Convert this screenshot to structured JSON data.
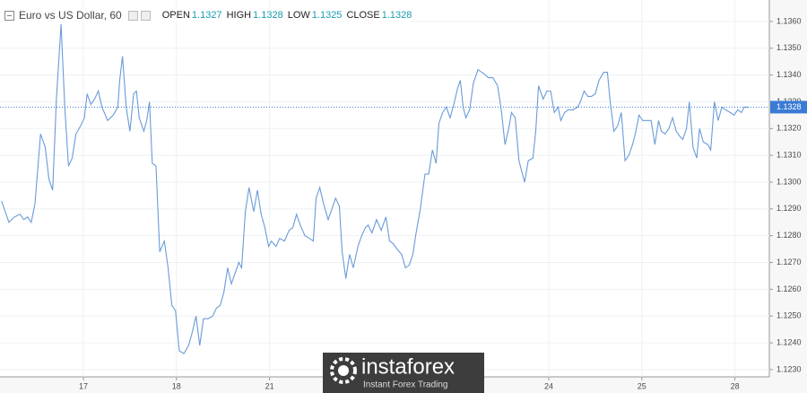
{
  "chart_data": {
    "type": "line",
    "title": "Euro vs US Dollar, 60",
    "ohlc": [
      {
        "label": "OPEN",
        "value": 1.1327
      },
      {
        "label": "HIGH",
        "value": 1.1328
      },
      {
        "label": "LOW",
        "value": 1.1325
      },
      {
        "label": "CLOSE",
        "value": 1.1328
      }
    ],
    "last_price": 1.1328,
    "color": "#6a9bd8",
    "last_price_color": "#3a7bd5",
    "grid": true,
    "xlim": [
      -0.896,
      7.37
    ],
    "ylim": [
      1.12273,
      1.1368
    ],
    "xticks": [
      {
        "value": 0,
        "label": "17"
      },
      {
        "value": 1,
        "label": "18"
      },
      {
        "value": 2,
        "label": "21"
      },
      {
        "value": 5,
        "label": "24"
      },
      {
        "value": 6,
        "label": "25"
      },
      {
        "value": 7,
        "label": "28"
      }
    ],
    "yticks": [
      {
        "value": 1.123,
        "label": "1.1230"
      },
      {
        "value": 1.124,
        "label": "1.1240"
      },
      {
        "value": 1.125,
        "label": "1.1250"
      },
      {
        "value": 1.126,
        "label": "1.1260"
      },
      {
        "value": 1.127,
        "label": "1.1270"
      },
      {
        "value": 1.128,
        "label": "1.1280"
      },
      {
        "value": 1.129,
        "label": "1.1290"
      },
      {
        "value": 1.13,
        "label": "1.1300"
      },
      {
        "value": 1.131,
        "label": "1.1310"
      },
      {
        "value": 1.132,
        "label": "1.1320"
      },
      {
        "value": 1.133,
        "label": "1.1330"
      },
      {
        "value": 1.134,
        "label": "1.1340"
      },
      {
        "value": 1.135,
        "label": "1.1350"
      },
      {
        "value": 1.136,
        "label": "1.1360"
      }
    ],
    "x": [
      -0.88,
      -0.8,
      -0.74,
      -0.68,
      -0.64,
      -0.6,
      -0.56,
      -0.52,
      -0.46,
      -0.41,
      -0.37,
      -0.33,
      -0.29,
      -0.24,
      -0.2,
      -0.16,
      -0.12,
      -0.08,
      -0.03,
      0.01,
      0.04,
      0.08,
      0.12,
      0.16,
      0.2,
      0.26,
      0.32,
      0.37,
      0.39,
      0.42,
      0.46,
      0.5,
      0.54,
      0.57,
      0.6,
      0.65,
      0.68,
      0.71,
      0.74,
      0.78,
      0.82,
      0.87,
      0.91,
      0.95,
      0.99,
      1.03,
      1.08,
      1.13,
      1.17,
      1.21,
      1.25,
      1.29,
      1.34,
      1.39,
      1.43,
      1.47,
      1.51,
      1.55,
      1.59,
      1.63,
      1.67,
      1.7,
      1.74,
      1.78,
      1.83,
      1.87,
      1.91,
      1.95,
      1.99,
      2.02,
      2.07,
      2.11,
      2.16,
      2.21,
      2.25,
      2.29,
      2.33,
      2.38,
      2.43,
      2.47,
      2.5,
      2.54,
      2.58,
      2.63,
      2.67,
      2.71,
      2.75,
      2.78,
      2.82,
      2.86,
      2.9,
      2.95,
      2.99,
      3.03,
      3.06,
      3.1,
      3.15,
      3.2,
      3.25,
      3.29,
      3.33,
      3.37,
      3.42,
      3.46,
      3.5,
      3.54,
      3.57,
      3.62,
      3.67,
      3.71,
      3.75,
      3.79,
      3.82,
      3.86,
      3.9,
      3.94,
      3.98,
      4.02,
      4.05,
      4.08,
      4.11,
      4.15,
      4.19,
      4.24,
      4.28,
      4.32,
      4.35,
      4.4,
      4.45,
      4.49,
      4.53,
      4.57,
      4.6,
      4.64,
      4.68,
      4.74,
      4.78,
      4.83,
      4.86,
      4.89,
      4.94,
      4.98,
      5.02,
      5.06,
      5.1,
      5.13,
      5.17,
      5.21,
      5.26,
      5.31,
      5.34,
      5.38,
      5.42,
      5.46,
      5.5,
      5.54,
      5.59,
      5.63,
      5.66,
      5.7,
      5.74,
      5.78,
      5.82,
      5.86,
      5.9,
      5.93,
      5.97,
      6.01,
      6.05,
      6.1,
      6.14,
      6.18,
      6.21,
      6.25,
      6.29,
      6.33,
      6.37,
      6.41,
      6.44,
      6.48,
      6.51,
      6.55,
      6.59,
      6.62,
      6.66,
      6.71,
      6.74,
      6.78,
      6.82,
      6.86,
      6.9,
      6.95,
      6.99,
      7.03,
      7.07,
      7.1,
      7.15
    ],
    "values": [
      1.1293,
      1.1285,
      1.1287,
      1.1288,
      1.1286,
      1.1287,
      1.1285,
      1.1292,
      1.1318,
      1.1313,
      1.1301,
      1.1297,
      1.1331,
      1.1359,
      1.1328,
      1.1306,
      1.1309,
      1.1318,
      1.1321,
      1.1324,
      1.1333,
      1.1329,
      1.1331,
      1.1334,
      1.1328,
      1.1323,
      1.1325,
      1.1328,
      1.1338,
      1.1347,
      1.1328,
      1.1319,
      1.1333,
      1.1334,
      1.1324,
      1.1319,
      1.1323,
      1.133,
      1.1307,
      1.1306,
      1.1274,
      1.1278,
      1.1268,
      1.1254,
      1.1252,
      1.1237,
      1.1236,
      1.1239,
      1.1244,
      1.125,
      1.1239,
      1.1249,
      1.1249,
      1.125,
      1.1253,
      1.1254,
      1.1259,
      1.1268,
      1.1262,
      1.1266,
      1.127,
      1.1268,
      1.1289,
      1.1298,
      1.1289,
      1.1297,
      1.1288,
      1.1283,
      1.1276,
      1.1278,
      1.1276,
      1.1279,
      1.1278,
      1.1282,
      1.1283,
      1.1288,
      1.1284,
      1.128,
      1.1279,
      1.1278,
      1.1294,
      1.1298,
      1.1292,
      1.1286,
      1.129,
      1.1294,
      1.1291,
      1.1274,
      1.1264,
      1.1273,
      1.1268,
      1.1276,
      1.128,
      1.1283,
      1.1284,
      1.1281,
      1.1286,
      1.1282,
      1.1287,
      1.1278,
      1.1277,
      1.1275,
      1.1273,
      1.1268,
      1.1269,
      1.1273,
      1.128,
      1.129,
      1.1303,
      1.1303,
      1.1312,
      1.1307,
      1.1322,
      1.1326,
      1.1328,
      1.1324,
      1.1329,
      1.1335,
      1.1338,
      1.1328,
      1.1324,
      1.1327,
      1.1337,
      1.1342,
      1.1341,
      1.134,
      1.1339,
      1.1339,
      1.1336,
      1.1327,
      1.1314,
      1.132,
      1.1326,
      1.1324,
      1.1308,
      1.13,
      1.1308,
      1.1309,
      1.1319,
      1.1336,
      1.1331,
      1.1334,
      1.1334,
      1.1326,
      1.1328,
      1.1323,
      1.1326,
      1.1327,
      1.1327,
      1.1328,
      1.133,
      1.1334,
      1.1332,
      1.1332,
      1.1333,
      1.1338,
      1.1341,
      1.1341,
      1.133,
      1.1319,
      1.1321,
      1.1326,
      1.1308,
      1.131,
      1.1314,
      1.1318,
      1.1325,
      1.1323,
      1.1323,
      1.1323,
      1.1314,
      1.1323,
      1.1319,
      1.1318,
      1.132,
      1.1324,
      1.1319,
      1.1317,
      1.1316,
      1.132,
      1.133,
      1.1313,
      1.1309,
      1.132,
      1.1315,
      1.1314,
      1.1312,
      1.133,
      1.1323,
      1.1328,
      1.1327,
      1.1326,
      1.1325,
      1.1327,
      1.1326,
      1.1328,
      1.1328
    ]
  },
  "watermark": {
    "brand": "instaforex",
    "tagline": "Instant Forex Trading"
  }
}
